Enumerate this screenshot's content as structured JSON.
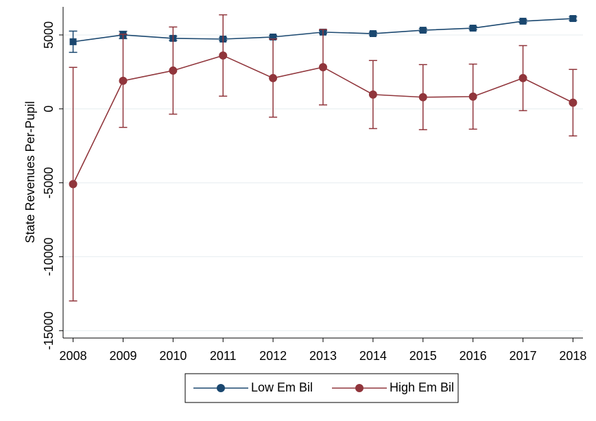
{
  "chart_data": {
    "type": "line",
    "y_label": "State Revenues Per-Pupil",
    "x": [
      2008,
      2009,
      2010,
      2011,
      2012,
      2013,
      2014,
      2015,
      2016,
      2017,
      2018
    ],
    "xlim": [
      2007.8,
      2018.2
    ],
    "xticks": [
      2008,
      2009,
      2010,
      2011,
      2012,
      2013,
      2014,
      2015,
      2016,
      2017,
      2018
    ],
    "ylim": [
      -15500,
      6900
    ],
    "yticks": [
      -15000,
      -10000,
      -5000,
      0,
      5000
    ],
    "grid": true,
    "legend": "bottom",
    "series": [
      {
        "name": "Low Em Bil",
        "color": "#1a476f",
        "marker": "square",
        "values": [
          4540,
          5000,
          4770,
          4720,
          4860,
          5190,
          5090,
          5320,
          5460,
          5930,
          6110
        ],
        "errors": [
          720,
          250,
          150,
          100,
          100,
          100,
          100,
          100,
          100,
          100,
          120
        ]
      },
      {
        "name": "High Em Bil",
        "color": "#90353b",
        "marker": "circle",
        "values": [
          -5090,
          1900,
          2590,
          3610,
          2080,
          2820,
          970,
          790,
          830,
          2080,
          420
        ],
        "errors": [
          7900,
          3150,
          2950,
          2750,
          2640,
          2550,
          2300,
          2200,
          2200,
          2200,
          2250
        ]
      }
    ]
  }
}
